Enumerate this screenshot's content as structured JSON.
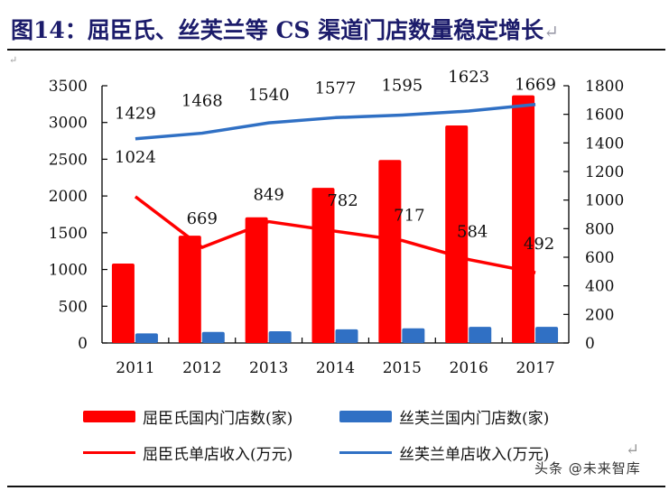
{
  "title": {
    "text": "图14：屈臣氏、丝芙兰等 CS 渠道门店数量稳定增长",
    "return_mark": "↵"
  },
  "chart_data": {
    "type": "bar+line",
    "title": "屈臣氏、丝芙兰等 CS 渠道门店数量稳定增长",
    "categories": [
      "2011",
      "2012",
      "2013",
      "2014",
      "2015",
      "2016",
      "2017"
    ],
    "y_left": {
      "ylim": [
        0,
        3500
      ],
      "ticks": [
        0,
        500,
        1000,
        1500,
        2000,
        2500,
        3000,
        3500
      ],
      "label": ""
    },
    "y_right": {
      "ylim": [
        0,
        1800
      ],
      "ticks": [
        0,
        200,
        400,
        600,
        800,
        1000,
        1200,
        1400,
        1600,
        1800
      ],
      "label": ""
    },
    "series": [
      {
        "name": "屈臣氏国内门店数(家)",
        "type": "bar",
        "axis": "left",
        "color": "#ff0000",
        "values": [
          1080,
          1460,
          1710,
          2110,
          2490,
          2960,
          3370
        ]
      },
      {
        "name": "丝芙兰国内门店数(家)",
        "type": "bar",
        "axis": "left",
        "color": "#3070c4",
        "values": [
          130,
          150,
          160,
          185,
          200,
          220,
          220
        ]
      },
      {
        "name": "屈臣氏单店收入(万元)",
        "type": "line",
        "axis": "right",
        "color": "#ff0000",
        "values": [
          1024,
          669,
          849,
          782,
          717,
          584,
          492
        ],
        "labels": [
          "1024",
          "669",
          "849",
          "782",
          "717",
          "584",
          "492"
        ]
      },
      {
        "name": "丝芙兰单店收入(万元)",
        "type": "line",
        "axis": "right",
        "color": "#3070c4",
        "values": [
          1429,
          1468,
          1540,
          1577,
          1595,
          1623,
          1669
        ],
        "labels": [
          "1429",
          "1468",
          "1540",
          "1577",
          "1595",
          "1623",
          "1669"
        ]
      }
    ],
    "legend_position": "bottom",
    "grid": false
  },
  "legend": [
    {
      "label": "屈臣氏国内门店数(家)",
      "kind": "bar",
      "color": "#ff0000"
    },
    {
      "label": "丝芙兰国内门店数(家)",
      "kind": "bar",
      "color": "#3070c4"
    },
    {
      "label": "屈臣氏单店收入(万元)",
      "kind": "line",
      "color": "#ff0000"
    },
    {
      "label": "丝芙兰单店收入(万元)",
      "kind": "line",
      "color": "#3070c4"
    }
  ],
  "watermark": "头条 @未来智库",
  "para_mark": "↵"
}
